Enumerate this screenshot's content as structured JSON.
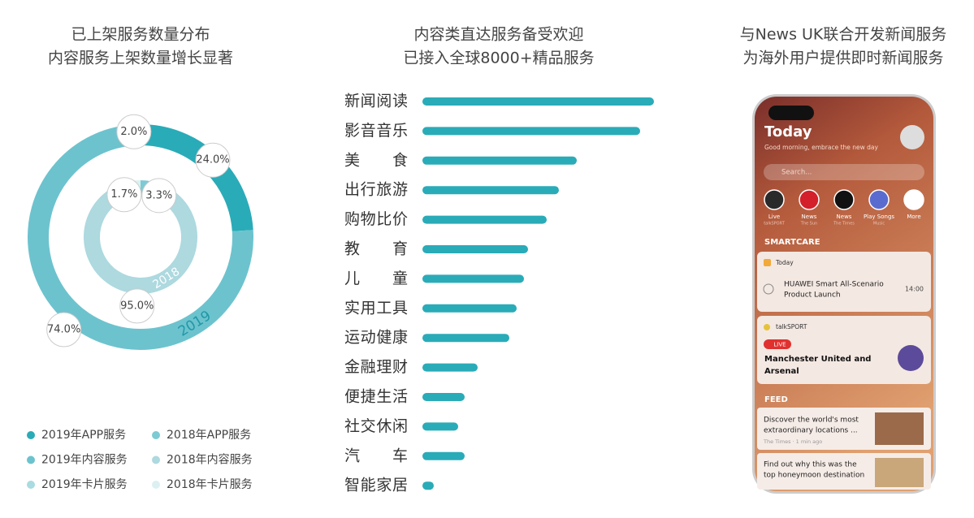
{
  "chart_data": [
    {
      "type": "donut",
      "title": "已上架服务数量分布",
      "subtitle": "内容服务上架数量增长显著",
      "rings": [
        {
          "name": "2019",
          "values": [
            24.0,
            74.0,
            2.0
          ],
          "value_labels": [
            "24.0%",
            "74.0%",
            "2.0%"
          ],
          "colors": [
            "#2aabb8",
            "#6cc3ce",
            "#a9dbe1"
          ]
        },
        {
          "name": "2018",
          "values": [
            3.3,
            95.0,
            1.7
          ],
          "value_labels": [
            "3.3%",
            "95.0%",
            "1.7%"
          ],
          "colors": [
            "#7dcad3",
            "#add9df",
            "#dcf0f2"
          ]
        }
      ],
      "legend": [
        "2019年APP服务",
        "2018年APP服务",
        "2019年内容服务",
        "2018年内容服务",
        "2019年卡片服务",
        "2018年卡片服务"
      ]
    },
    {
      "type": "bar",
      "title": "内容类直达服务备受欢迎",
      "subtitle": "已接入全球8000+精品服务",
      "categories": [
        "新闻阅读",
        "影音音乐",
        "美 食",
        "出行旅游",
        "购物比价",
        "教 育",
        "儿 童",
        "实用工具",
        "运动健康",
        "金融理财",
        "便捷生活",
        "社交休闲",
        "汽 车",
        "智能家居"
      ],
      "values": [
        285,
        268,
        190,
        168,
        153,
        130,
        125,
        116,
        107,
        68,
        52,
        44,
        52,
        14
      ],
      "color": "#2aabb8"
    }
  ],
  "phone": {
    "title": "与News UK联合开发新闻服务",
    "subtitle": "为海外用户提供即时新闻服务",
    "heading": "Today",
    "greeting": "Good morning, embrace the new day",
    "search": "Search...",
    "apps": [
      {
        "label": "Live",
        "source": "talkSPORT"
      },
      {
        "label": "News",
        "source": "The Sun"
      },
      {
        "label": "News",
        "source": "The Times"
      },
      {
        "label": "Play Songs",
        "source": "Music"
      },
      {
        "label": "More"
      }
    ],
    "smartcare": "SMARTCARE",
    "cards": [
      {
        "tag": "Today",
        "lines": [
          "HUAWEI Smart All-Scenario",
          "Product Launch"
        ],
        "time": "14:00"
      },
      {
        "tag": "talkSPORT",
        "badge": "LIVE",
        "lines": [
          "Manchester United and",
          "Arsenal"
        ]
      }
    ],
    "feed_heading": "FEED",
    "feed": [
      {
        "lines": [
          "Discover the world's most",
          "extraordinary locations ..."
        ],
        "meta": "The Times · 1 min ago"
      },
      {
        "lines": [
          "Find out why this was the",
          "top honeymoon destination"
        ]
      }
    ]
  }
}
